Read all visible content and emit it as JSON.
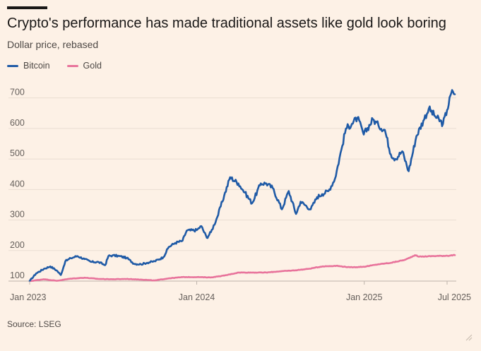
{
  "header": {
    "title": "Crypto's performance has made traditional assets like gold look boring",
    "subtitle": "Dollar price, rebased"
  },
  "legend": {
    "items": [
      {
        "label": "Bitcoin",
        "color": "#1f5aa6"
      },
      {
        "label": "Gold",
        "color": "#e8739b"
      }
    ]
  },
  "footer": {
    "source": "Source: LSEG"
  },
  "chart_data": {
    "type": "line",
    "title": "Crypto's performance has made traditional assets like gold look boring",
    "subtitle": "Dollar price, rebased",
    "xlabel": "",
    "ylabel": "",
    "x_ticks": [
      "Jan 2023",
      "Jan 2024",
      "Jan 2025",
      "Jul 2025"
    ],
    "y_ticks": [
      100,
      200,
      300,
      400,
      500,
      600,
      700
    ],
    "xlim": [
      "2023-01-01",
      "2025-07-18"
    ],
    "ylim": [
      100,
      720
    ],
    "grid": "horizontal",
    "legend_position": "top-left",
    "series": [
      {
        "name": "Bitcoin",
        "color": "#1f5aa6",
        "points": [
          [
            "2023-01-01",
            100
          ],
          [
            "2023-01-15",
            125
          ],
          [
            "2023-02-01",
            140
          ],
          [
            "2023-02-15",
            148
          ],
          [
            "2023-03-01",
            135
          ],
          [
            "2023-03-10",
            120
          ],
          [
            "2023-03-20",
            165
          ],
          [
            "2023-04-01",
            175
          ],
          [
            "2023-04-15",
            182
          ],
          [
            "2023-05-01",
            172
          ],
          [
            "2023-05-15",
            163
          ],
          [
            "2023-06-01",
            162
          ],
          [
            "2023-06-15",
            152
          ],
          [
            "2023-06-22",
            182
          ],
          [
            "2023-07-01",
            184
          ],
          [
            "2023-07-15",
            182
          ],
          [
            "2023-08-01",
            176
          ],
          [
            "2023-08-17",
            157
          ],
          [
            "2023-09-01",
            155
          ],
          [
            "2023-09-15",
            160
          ],
          [
            "2023-10-01",
            165
          ],
          [
            "2023-10-20",
            178
          ],
          [
            "2023-11-01",
            212
          ],
          [
            "2023-11-15",
            225
          ],
          [
            "2023-12-01",
            232
          ],
          [
            "2023-12-10",
            265
          ],
          [
            "2024-01-01",
            267
          ],
          [
            "2024-01-11",
            280
          ],
          [
            "2024-01-23",
            242
          ],
          [
            "2024-02-01",
            260
          ],
          [
            "2024-02-15",
            310
          ],
          [
            "2024-03-01",
            380
          ],
          [
            "2024-03-14",
            440
          ],
          [
            "2024-04-01",
            420
          ],
          [
            "2024-04-15",
            390
          ],
          [
            "2024-05-01",
            355
          ],
          [
            "2024-05-20",
            420
          ],
          [
            "2024-06-01",
            420
          ],
          [
            "2024-06-15",
            405
          ],
          [
            "2024-07-05",
            335
          ],
          [
            "2024-07-20",
            395
          ],
          [
            "2024-08-05",
            320
          ],
          [
            "2024-08-15",
            360
          ],
          [
            "2024-09-06",
            335
          ],
          [
            "2024-09-20",
            375
          ],
          [
            "2024-10-01",
            385
          ],
          [
            "2024-10-15",
            395
          ],
          [
            "2024-10-29",
            435
          ],
          [
            "2024-11-12",
            530
          ],
          [
            "2024-11-22",
            600
          ],
          [
            "2024-12-05",
            615
          ],
          [
            "2024-12-17",
            635
          ],
          [
            "2024-12-31",
            580
          ],
          [
            "2025-01-20",
            630
          ],
          [
            "2025-02-01",
            610
          ],
          [
            "2025-02-15",
            595
          ],
          [
            "2025-02-28",
            515
          ],
          [
            "2025-03-10",
            500
          ],
          [
            "2025-03-25",
            525
          ],
          [
            "2025-04-08",
            460
          ],
          [
            "2025-04-25",
            575
          ],
          [
            "2025-05-10",
            625
          ],
          [
            "2025-05-22",
            665
          ],
          [
            "2025-06-05",
            640
          ],
          [
            "2025-06-22",
            615
          ],
          [
            "2025-07-01",
            660
          ],
          [
            "2025-07-10",
            715
          ],
          [
            "2025-07-14",
            720
          ],
          [
            "2025-07-18",
            712
          ]
        ]
      },
      {
        "name": "Gold",
        "color": "#e8739b",
        "points": [
          [
            "2023-01-01",
            100
          ],
          [
            "2023-02-01",
            106
          ],
          [
            "2023-03-01",
            101
          ],
          [
            "2023-04-01",
            108
          ],
          [
            "2023-05-01",
            111
          ],
          [
            "2023-06-01",
            107
          ],
          [
            "2023-07-01",
            106
          ],
          [
            "2023-08-01",
            107
          ],
          [
            "2023-09-01",
            105
          ],
          [
            "2023-10-01",
            102
          ],
          [
            "2023-11-01",
            109
          ],
          [
            "2023-12-01",
            113
          ],
          [
            "2024-01-01",
            113
          ],
          [
            "2024-02-01",
            112
          ],
          [
            "2024-03-01",
            118
          ],
          [
            "2024-04-01",
            128
          ],
          [
            "2024-05-01",
            128
          ],
          [
            "2024-06-01",
            128
          ],
          [
            "2024-07-01",
            132
          ],
          [
            "2024-08-01",
            135
          ],
          [
            "2024-09-01",
            140
          ],
          [
            "2024-10-01",
            148
          ],
          [
            "2024-11-01",
            150
          ],
          [
            "2024-12-01",
            145
          ],
          [
            "2025-01-01",
            147
          ],
          [
            "2025-02-01",
            155
          ],
          [
            "2025-03-01",
            160
          ],
          [
            "2025-04-01",
            170
          ],
          [
            "2025-04-22",
            185
          ],
          [
            "2025-05-01",
            180
          ],
          [
            "2025-06-01",
            182
          ],
          [
            "2025-07-01",
            183
          ],
          [
            "2025-07-18",
            185
          ]
        ]
      }
    ]
  }
}
